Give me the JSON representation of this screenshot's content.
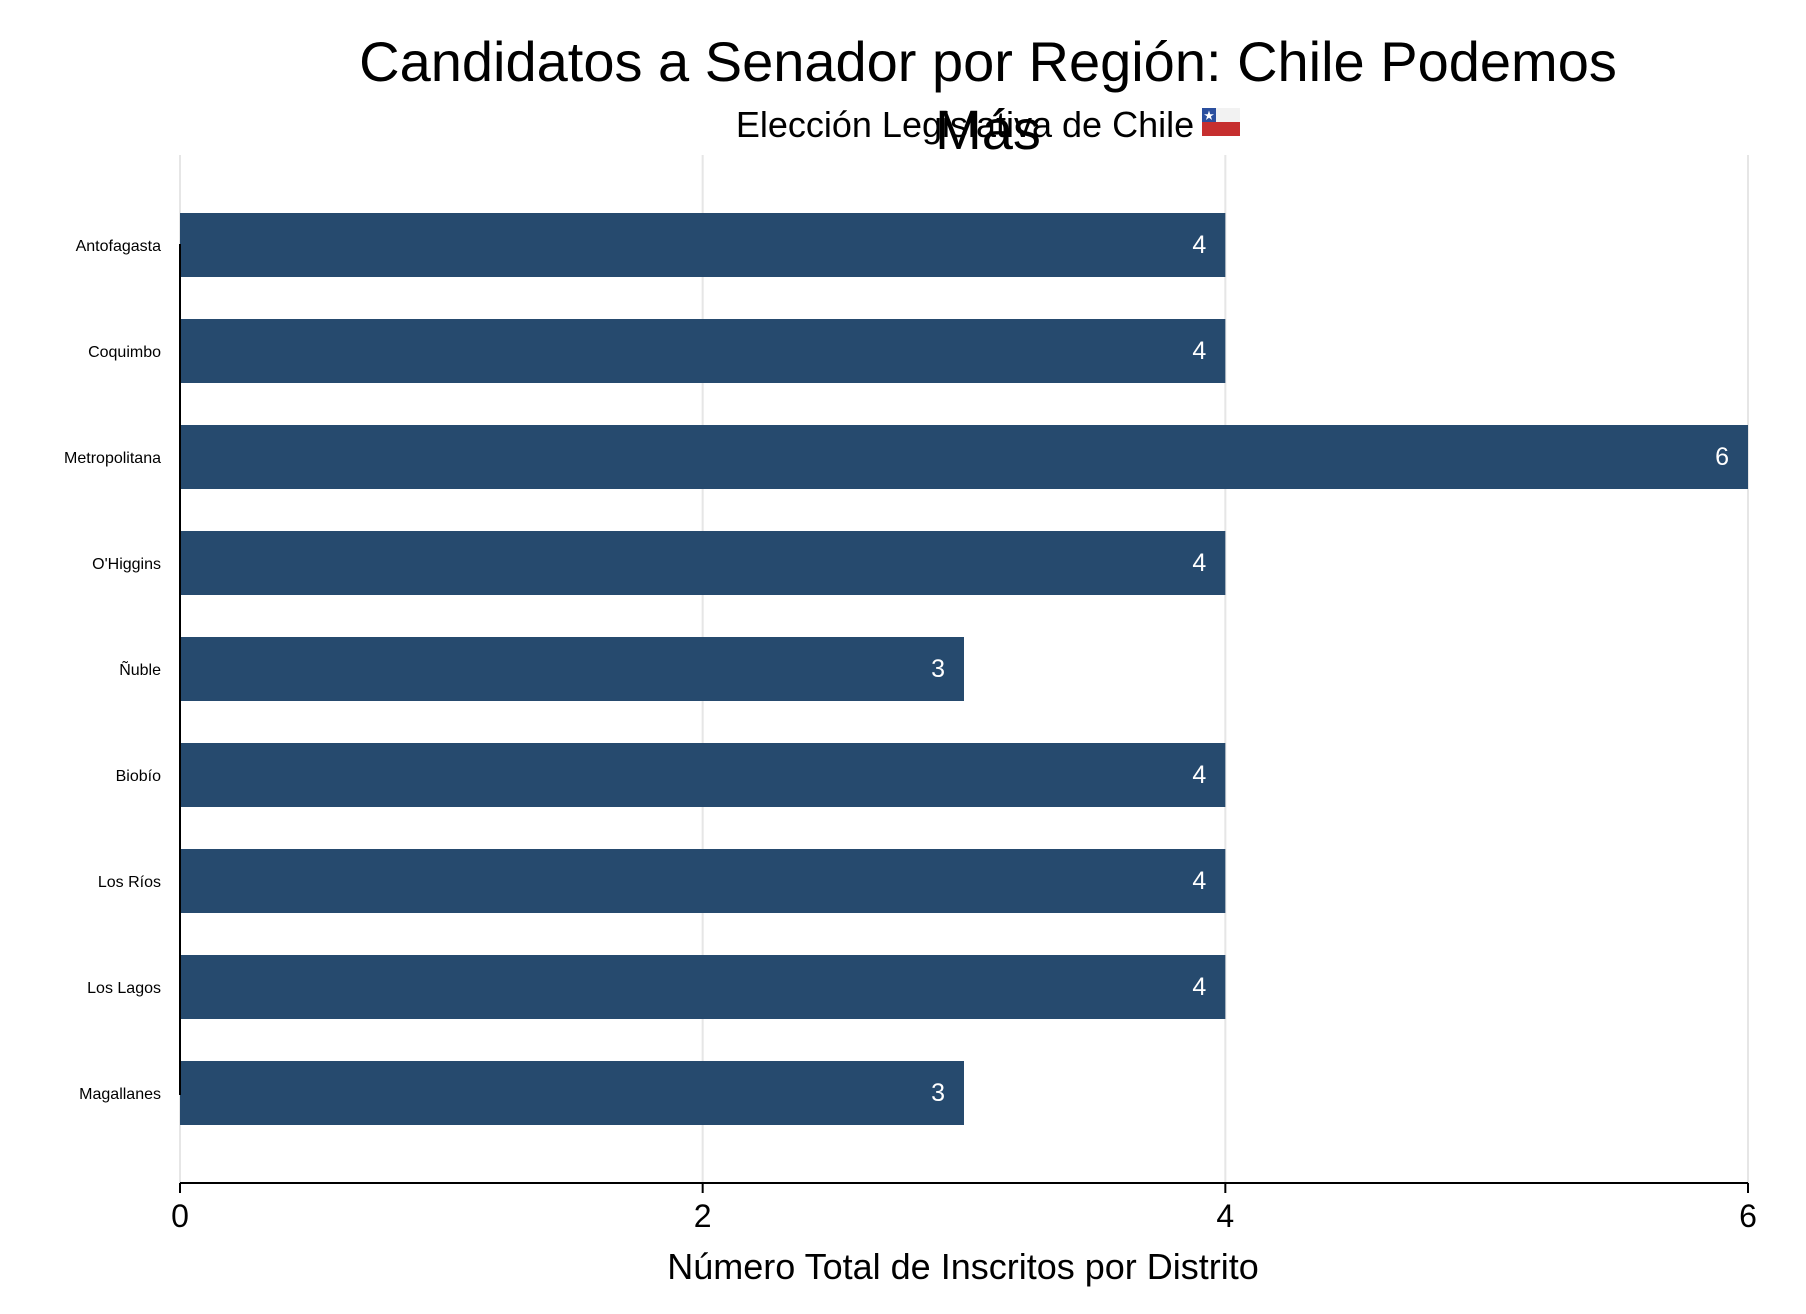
{
  "chart_data": {
    "type": "bar",
    "orientation": "horizontal",
    "title": "Candidatos a Senador por Región: Chile Podemos Más",
    "subtitle": "Elección Legislativa de Chile",
    "subtitle_icon": "chile-flag-icon",
    "xlabel": "Número Total de Inscritos por Distrito",
    "ylabel": "",
    "categories": [
      "Antofagasta",
      "Coquimbo",
      "Metropolitana",
      "O'Higgins",
      "Ñuble",
      "Biobío",
      "Los Ríos",
      "Los Lagos",
      "Magallanes"
    ],
    "values": [
      4,
      4,
      6,
      4,
      3,
      4,
      4,
      4,
      3
    ],
    "data_labels": [
      "4",
      "4",
      "6",
      "4",
      "3",
      "4",
      "4",
      "4",
      "3"
    ],
    "xlim": [
      0,
      6
    ],
    "xticks": [
      0,
      2,
      4,
      6
    ],
    "xtick_labels": [
      "0",
      "2",
      "4",
      "6"
    ],
    "grid": "vertical",
    "legend": "none",
    "bar_color": "#264a6e",
    "data_label_color": "#ffffff",
    "grid_color": "#e6e6e6",
    "flag_colors": {
      "blue": "#2b4f9e",
      "white": "#f2f2f2",
      "red": "#c62f2f"
    }
  }
}
